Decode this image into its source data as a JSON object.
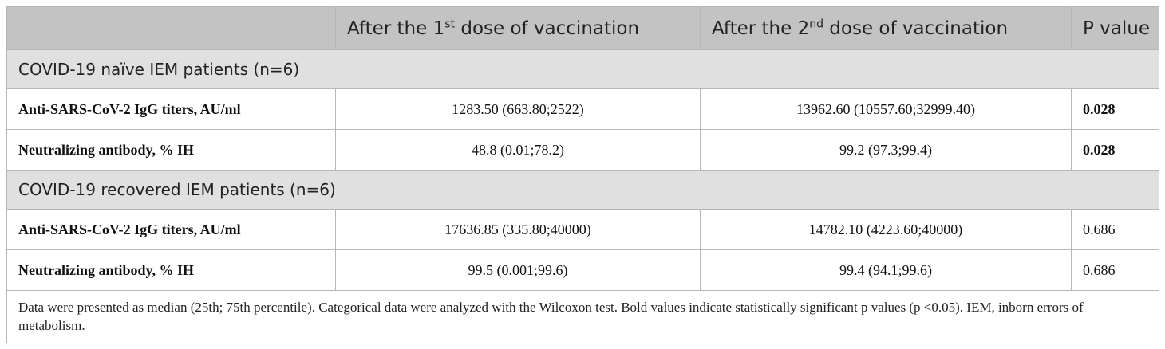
{
  "header": {
    "col1": "",
    "col2_pre": "After the 1",
    "col2_sup": "st",
    "col2_post": " dose of vaccination",
    "col3_pre": "After the 2",
    "col3_sup": "nd",
    "col3_post": " dose of vaccination",
    "col4": "P value"
  },
  "groups": [
    {
      "title": "COVID-19 naïve IEM patients (n=6)",
      "rows": [
        {
          "label": "Anti-SARS-CoV-2 IgG titers, AU/ml",
          "dose1": "1283.50 (663.80;2522)",
          "dose2": "13962.60 (10557.60;32999.40)",
          "p": "0.028"
        },
        {
          "label": "Neutralizing antibody, % IH",
          "dose1": "48.8 (0.01;78.2)",
          "dose2": "99.2 (97.3;99.4)",
          "p": "0.028"
        }
      ]
    },
    {
      "title": "COVID-19 recovered IEM patients (n=6)",
      "rows": [
        {
          "label": "Anti-SARS-CoV-2 IgG titers, AU/ml",
          "dose1": "17636.85 (335.80;40000)",
          "dose2": "14782.10 (4223.60;40000)",
          "p": "0.686"
        },
        {
          "label": "Neutralizing antibody, % IH",
          "dose1": "99.5 (0.001;99.6)",
          "dose2": "99.4 (94.1;99.6)",
          "p": "0.686"
        }
      ]
    }
  ],
  "footnote": "Data were presented as median (25th; 75th percentile). Categorical data were analyzed with the Wilcoxon test. Bold values indicate statistically significant p values (p <0.05). IEM, inborn errors of metabolism."
}
